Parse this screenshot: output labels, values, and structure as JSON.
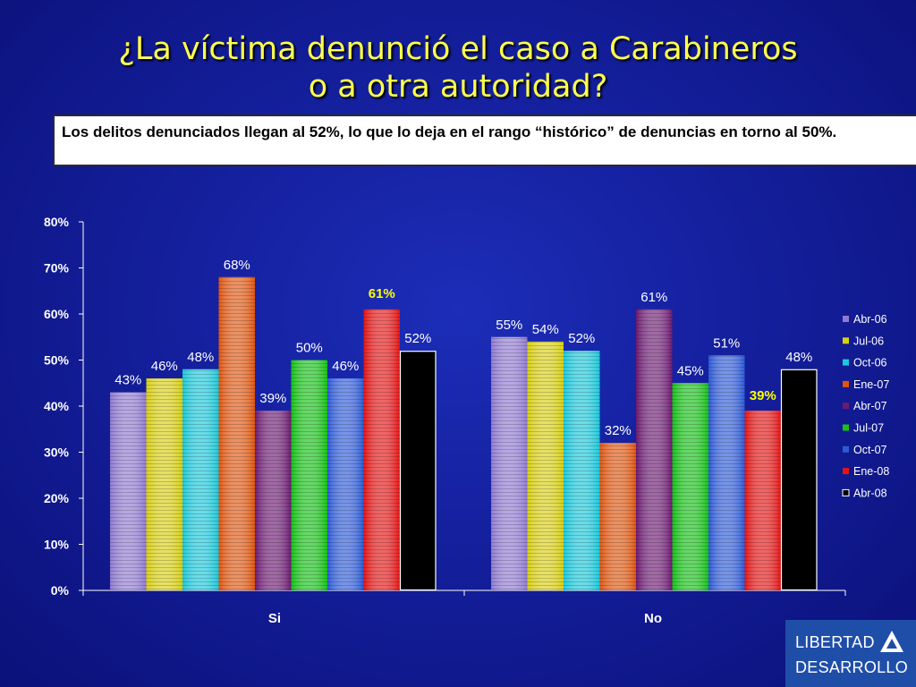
{
  "slide": {
    "title_line1": "¿La víctima denunció el caso a Carabineros",
    "title_line2": "o a otra autoridad?",
    "subtitle": "Los delitos denunciados llegan al 52%, lo que lo deja en el rango “histórico” de denuncias en torno al 50%."
  },
  "logo": {
    "line1": "LIBERTAD",
    "line2": "DESARROLLO"
  },
  "chart_data": {
    "type": "bar",
    "title": "",
    "xlabel": "",
    "ylabel": "",
    "ylim": [
      0,
      80
    ],
    "y_ticks": [
      "0%",
      "10%",
      "20%",
      "30%",
      "40%",
      "50%",
      "60%",
      "70%",
      "80%"
    ],
    "categories": [
      "Si",
      "No"
    ],
    "legend_position": "right",
    "grid": false,
    "series": [
      {
        "name": "Abr-06",
        "color": "#8f7ad1",
        "values": [
          43,
          55
        ],
        "labels": [
          "43%",
          "55%"
        ]
      },
      {
        "name": "Jul-06",
        "color": "#d8cf12",
        "values": [
          46,
          54
        ],
        "labels": [
          "46%",
          "54%"
        ]
      },
      {
        "name": "Oct-06",
        "color": "#1bc9dc",
        "values": [
          48,
          52
        ],
        "labels": [
          "48%",
          "52%"
        ]
      },
      {
        "name": "Ene-07",
        "color": "#e0560f",
        "values": [
          68,
          32
        ],
        "labels": [
          "68%",
          "32%"
        ]
      },
      {
        "name": "Abr-07",
        "color": "#6c1a72",
        "values": [
          39,
          61
        ],
        "labels": [
          "39%",
          "61%"
        ]
      },
      {
        "name": "Jul-07",
        "color": "#16c218",
        "values": [
          50,
          45
        ],
        "labels": [
          "50%",
          "45%"
        ]
      },
      {
        "name": "Oct-07",
        "color": "#2d5ad8",
        "values": [
          46,
          51
        ],
        "labels": [
          "46%",
          "51%"
        ]
      },
      {
        "name": "Ene-08",
        "color": "#e51414",
        "values": [
          61,
          39
        ],
        "labels": [
          "61%",
          "39%"
        ]
      },
      {
        "name": "Abr-08",
        "color": "#000000",
        "values": [
          52,
          48
        ],
        "labels": [
          "52%",
          "48%"
        ]
      }
    ],
    "highlighted_labels": [
      {
        "series": "Ene-08",
        "category": "Si",
        "color": "#ffff00"
      },
      {
        "series": "Ene-08",
        "category": "No",
        "color": "#ffff00"
      }
    ]
  }
}
